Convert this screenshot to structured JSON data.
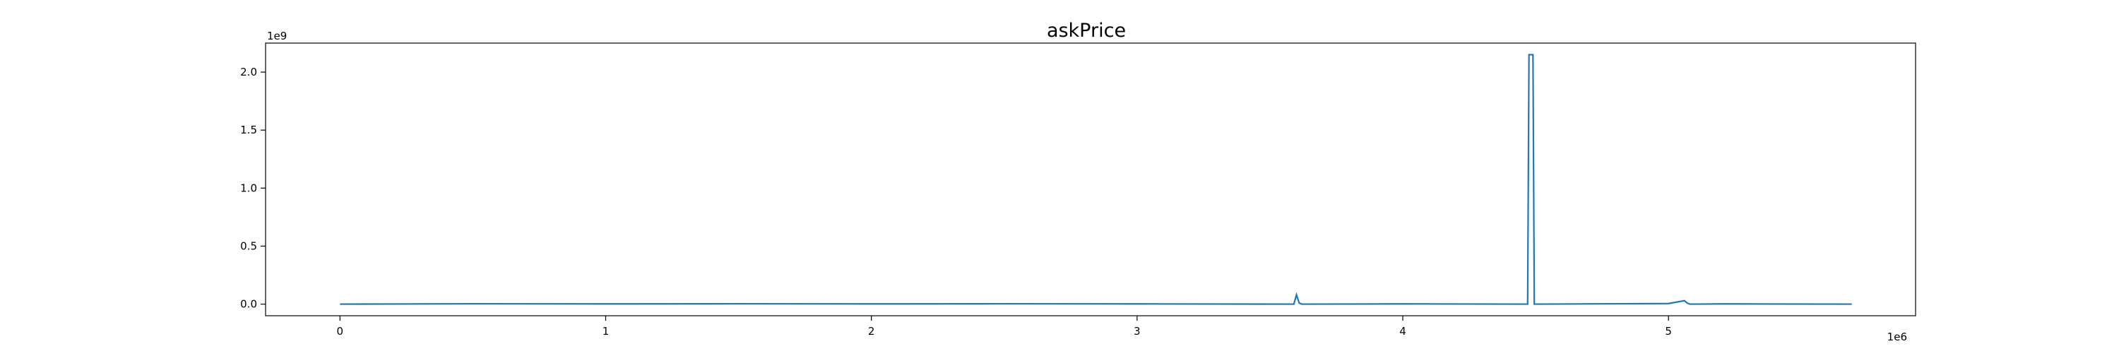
{
  "chart_data": {
    "type": "line",
    "title": "askPrice",
    "xlabel": "",
    "ylabel": "",
    "x_scale_label": "1e6",
    "y_scale_label": "1e9",
    "xlim": [
      -0.28,
      5.93
    ],
    "ylim": [
      -0.1,
      2.25
    ],
    "x_ticks": [
      0,
      1,
      2,
      3,
      4,
      5
    ],
    "x_tick_labels": [
      "0",
      "1",
      "2",
      "3",
      "4",
      "5"
    ],
    "y_ticks": [
      0.0,
      0.5,
      1.0,
      1.5,
      2.0
    ],
    "y_tick_labels": [
      "0.0",
      "0.5",
      "1.0",
      "1.5",
      "2.0"
    ],
    "grid": false,
    "legend": "none",
    "series": [
      {
        "color": "#1f77b4",
        "x": [
          0,
          0.5,
          1,
          1.5,
          2,
          2.5,
          3,
          3.59,
          3.6,
          3.61,
          3.62,
          4.0,
          4.47,
          4.475,
          4.48,
          4.485,
          4.49,
          4.495,
          5.0,
          5.06,
          5.07,
          5.08,
          5.2,
          5.69
        ],
        "y": [
          0.0,
          0.003,
          0.002,
          0.003,
          0.002,
          0.003,
          0.002,
          0.0,
          0.08,
          0.01,
          0.0,
          0.002,
          0.0,
          2.15,
          2.15,
          2.15,
          2.15,
          0.0,
          0.005,
          0.03,
          0.01,
          0.0,
          0.002,
          0.0
        ]
      }
    ]
  }
}
